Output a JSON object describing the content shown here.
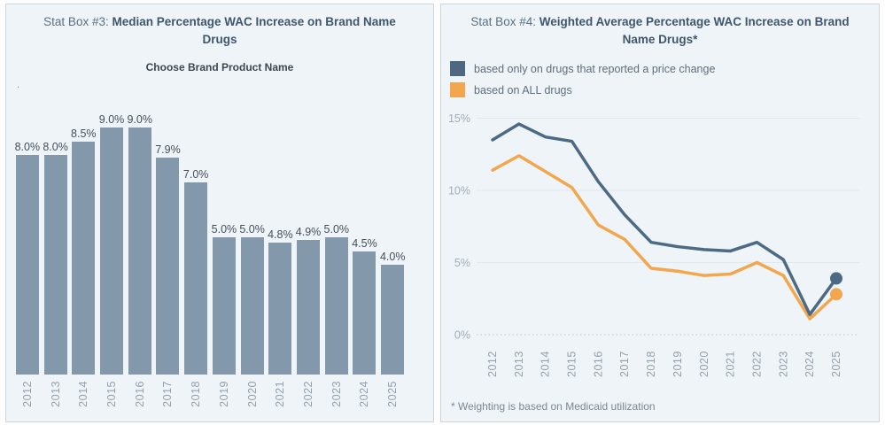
{
  "left_panel": {
    "title_prefix": "Stat Box #3: ",
    "title_bold": "Median Percentage WAC Increase on Brand Name Drugs",
    "subtitle": "Choose Brand Product Name",
    "stray_dot": "."
  },
  "right_panel": {
    "title_prefix": "Stat Box #4: ",
    "title_bold": "Weighted Average Percentage WAC Increase on Brand Name Drugs*",
    "legend": [
      {
        "label": "based only on drugs that reported a price change",
        "color": "#4d6880"
      },
      {
        "label": "based on ALL drugs",
        "color": "#f2a74e"
      }
    ],
    "footnote": "* Weighting is based on Medicaid utilization"
  },
  "chart_data": [
    {
      "type": "bar",
      "title": "Stat Box #3: Median Percentage WAC Increase on Brand Name Drugs",
      "subtitle": "Choose Brand Product Name",
      "categories": [
        "2012",
        "2013",
        "2014",
        "2015",
        "2016",
        "2017",
        "2018",
        "2019",
        "2020",
        "2021",
        "2022",
        "2023",
        "2024",
        "2025"
      ],
      "values": [
        8.0,
        8.0,
        8.5,
        9.0,
        9.0,
        7.9,
        7.0,
        5.0,
        5.0,
        4.8,
        4.9,
        5.0,
        4.5,
        4.0
      ],
      "labels": [
        "8.0%",
        "8.0%",
        "8.5%",
        "9.0%",
        "9.0%",
        "7.9%",
        "7.0%",
        "5.0%",
        "5.0%",
        "4.8%",
        "4.9%",
        "5.0%",
        "4.5%",
        "4.0%"
      ],
      "ylim": [
        0,
        9.5
      ],
      "bar_color": "#8398ab",
      "grid": false,
      "xlabel": "",
      "ylabel": ""
    },
    {
      "type": "line",
      "title": "Stat Box #4: Weighted Average Percentage WAC Increase on Brand Name Drugs*",
      "x": [
        "2012",
        "2013",
        "2014",
        "2015",
        "2016",
        "2017",
        "2018",
        "2019",
        "2020",
        "2021",
        "2022",
        "2023",
        "2024",
        "2025"
      ],
      "series": [
        {
          "name": "based only on drugs that reported a price change",
          "color": "#4d6a84",
          "values": [
            13.5,
            14.6,
            13.7,
            13.4,
            10.6,
            8.3,
            6.4,
            6.1,
            5.9,
            5.8,
            6.4,
            5.2,
            1.4,
            3.9
          ]
        },
        {
          "name": "based on ALL drugs",
          "color": "#f2a74e",
          "values": [
            11.4,
            12.4,
            11.3,
            10.2,
            7.6,
            6.6,
            4.6,
            4.4,
            4.1,
            4.2,
            5.0,
            4.1,
            1.1,
            2.8
          ]
        }
      ],
      "ylim": [
        0,
        16
      ],
      "yticks": [
        0,
        5,
        10,
        15
      ],
      "ytick_labels": [
        "0%",
        "5%",
        "10%",
        "15%"
      ],
      "grid": true,
      "legend_position": "top-left",
      "end_markers": true,
      "footnote": "* Weighting is based on Medicaid utilization"
    }
  ]
}
